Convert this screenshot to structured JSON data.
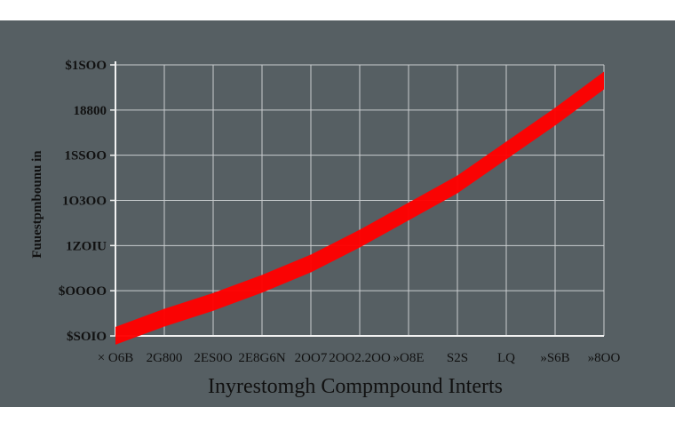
{
  "colors": {
    "background": "#ffffff",
    "panel": "#565f63",
    "grid": "#c9cdcf",
    "axis": "#f2f2f2",
    "text": "#111111",
    "series": "#ff0000"
  },
  "chart_data": {
    "type": "area",
    "title": "Inyrestomgh Compmpound Interts",
    "ylabel": "Fuuestpmbounu in",
    "grid": true,
    "legend": "none",
    "x": [
      0,
      1,
      2,
      3,
      4,
      5,
      6,
      7,
      8,
      9,
      10
    ],
    "xticks": [
      "× O6B",
      "2G800",
      "2ES0O",
      "2E8G6N",
      "2OO7",
      "2OO2.2OO",
      "»O8E",
      "S2S",
      "LQ",
      "»S6B",
      "»8OO"
    ],
    "yticks": [
      "$SOIO",
      "$OOOO",
      "1ZOIU",
      "1O3OO",
      "1SSOO",
      "18800",
      "$1SOO"
    ],
    "ylim": [
      0,
      6
    ],
    "series": [
      {
        "values": [
          0.2,
          0.6,
          0.95,
          1.35,
          1.8,
          2.35,
          2.95,
          3.55,
          4.3,
          5.05,
          5.85
        ]
      }
    ]
  }
}
